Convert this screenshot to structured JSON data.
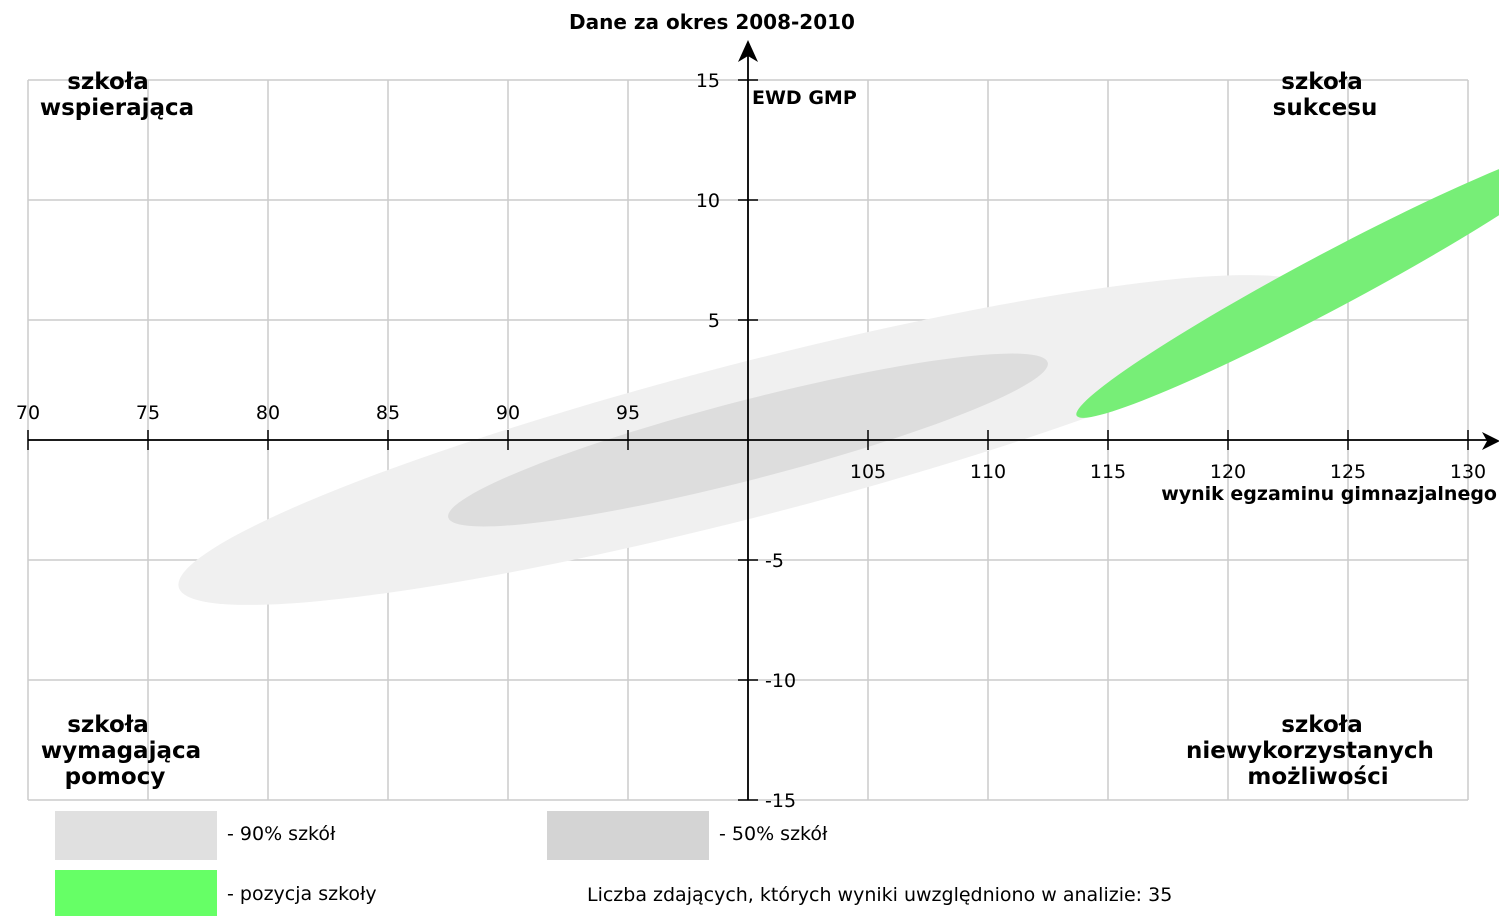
{
  "chart_data": {
    "type": "scatter",
    "title": "Dane za okres 2008-2010",
    "xlabel": "wynik egzaminu gimnazjalnego",
    "ylabel": "EWD GMP",
    "xlim": [
      70,
      130
    ],
    "ylim": [
      -15,
      15
    ],
    "x_ticks": [
      70,
      75,
      80,
      85,
      90,
      95,
      105,
      110,
      115,
      120,
      125,
      130
    ],
    "y_ticks": [
      15,
      10,
      5,
      -5,
      -10,
      -15
    ],
    "grid": true,
    "ellipses": [
      {
        "name": "90% szkół",
        "color": "#f0f0f0",
        "cx": 100,
        "cy": 0,
        "rx": 24.5,
        "ry": 3.2,
        "angle_deg": 14.5
      },
      {
        "name": "50% szkół",
        "color": "#dddddd",
        "cx": 100,
        "cy": 0,
        "rx": 12.9,
        "ry": 1.65,
        "angle_deg": 14.5
      },
      {
        "name": "pozycja szkoły",
        "color": "#77ee77",
        "cx": 124.2,
        "cy": 6.6,
        "rx": 11.9,
        "ry": 1.15,
        "angle_deg": 28
      }
    ],
    "quadrant_labels": {
      "top_left": [
        "szkoła",
        "wspierająca"
      ],
      "top_right": [
        "szkoła",
        "sukcesu"
      ],
      "bottom_left": [
        "szkoła",
        "wymagająca",
        "pomocy"
      ],
      "bottom_right": [
        "szkoła",
        "niewykorzystanych",
        "możliwości"
      ]
    },
    "legend": [
      {
        "label": "- 90% szkół",
        "color": "#e0e0e0"
      },
      {
        "label": "- 50% szkół",
        "color": "#d4d4d4"
      },
      {
        "label": "- pozycja szkoły",
        "color": "#66ff66"
      }
    ],
    "note": "Liczba zdających, których wyniki uwzględniono w analizie: 35"
  }
}
